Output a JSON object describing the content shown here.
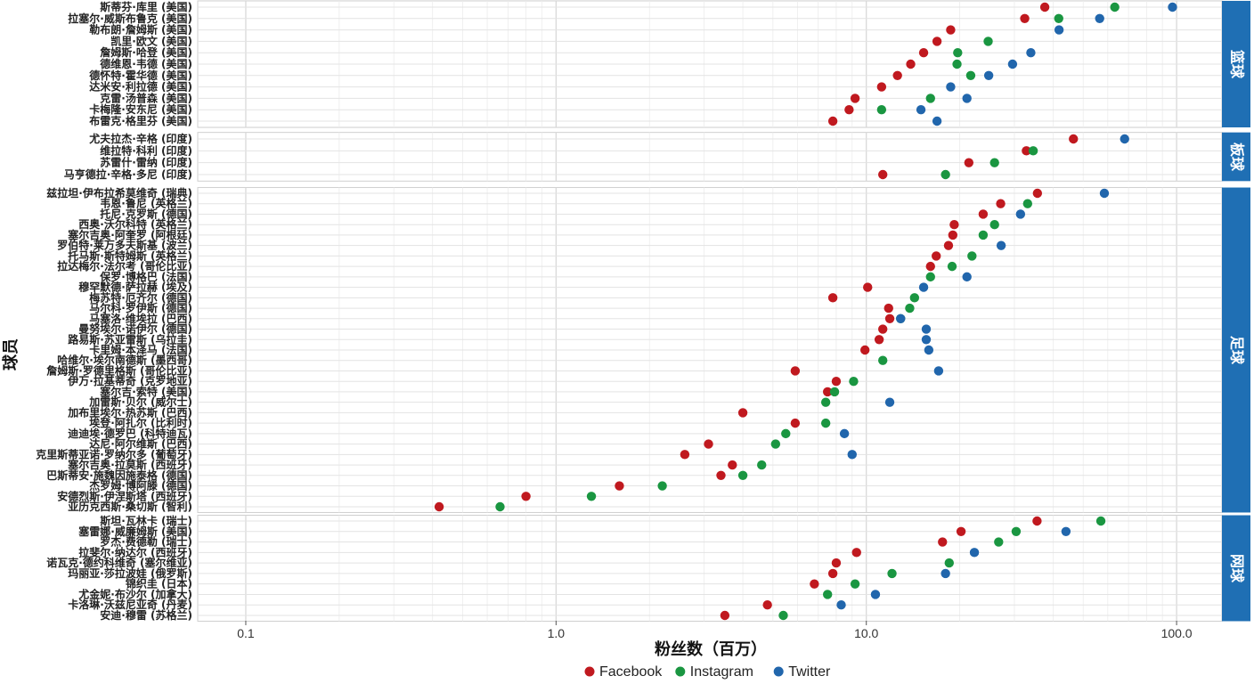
{
  "chart_data": {
    "type": "scatter",
    "xlabel": "粉丝数（百万）",
    "ylabel": "球员",
    "xscale": "log",
    "xlim": [
      0.07,
      140
    ],
    "xticks": [
      0.1,
      1.0,
      10.0,
      100.0
    ],
    "xtick_labels": [
      "0.1",
      "1.0",
      "10.0",
      "100.0"
    ],
    "grid": true,
    "legend_position": "bottom",
    "series": [
      {
        "name": "Facebook",
        "color": "#C0191F"
      },
      {
        "name": "Instagram",
        "color": "#1A9641"
      },
      {
        "name": "Twitter",
        "color": "#2166AC"
      }
    ],
    "facets": [
      {
        "label": "篮球",
        "players": [
          {
            "name": "斯蒂芬·库里 (美国)",
            "values": [
              37.6,
              63.2,
              97
            ]
          },
          {
            "name": "拉塞尔·威斯布鲁克 (美国)",
            "values": [
              32.4,
              41.7,
              56.5
            ]
          },
          {
            "name": "勒布朗·詹姆斯 (美国)",
            "values": [
              18.7,
              null,
              41.8
            ]
          },
          {
            "name": "凯里·欧文 (美国)",
            "values": [
              16.9,
              24.7,
              null
            ]
          },
          {
            "name": "詹姆斯·哈登 (美国)",
            "values": [
              15.3,
              19.7,
              33.9
            ]
          },
          {
            "name": "德维恩·韦德 (美国)",
            "values": [
              13.9,
              19.6,
              29.6
            ]
          },
          {
            "name": "德怀特·霍华德 (美国)",
            "values": [
              12.6,
              21.7,
              24.8
            ]
          },
          {
            "name": "达米安·利拉德 (美国)",
            "values": [
              11.2,
              null,
              18.7
            ]
          },
          {
            "name": "克雷·汤普森 (美国)",
            "values": [
              9.2,
              16.1,
              21.1
            ]
          },
          {
            "name": "卡梅隆·安东尼 (美国)",
            "values": [
              8.8,
              11.2,
              15.0
            ]
          },
          {
            "name": "布雷克·格里芬 (美国)",
            "values": [
              7.8,
              null,
              16.9
            ]
          }
        ]
      },
      {
        "label": "板球",
        "players": [
          {
            "name": "尤夫拉杰·辛格 (印度)",
            "values": [
              46.5,
              null,
              68
            ]
          },
          {
            "name": "维拉特·科利 (印度)",
            "values": [
              32.8,
              34.5,
              null
            ]
          },
          {
            "name": "苏雷什·雷纳 (印度)",
            "values": [
              21.4,
              25.9,
              null
            ]
          },
          {
            "name": "马亨德拉·辛格·多尼 (印度)",
            "values": [
              11.3,
              18.0,
              null
            ]
          }
        ]
      },
      {
        "label": "足球",
        "players": [
          {
            "name": "兹拉坦·伊布拉希莫维奇 (瑞典)",
            "values": [
              35.6,
              null,
              58.5
            ]
          },
          {
            "name": "韦恩·鲁尼 (英格兰)",
            "values": [
              27.1,
              33.1,
              null
            ]
          },
          {
            "name": "托尼·克罗斯 (德国)",
            "values": [
              23.8,
              null,
              31.4
            ]
          },
          {
            "name": "西奥·沃尔科特 (英格兰)",
            "values": [
              19.2,
              25.9,
              null
            ]
          },
          {
            "name": "塞尔吉奥·阿奎罗 (阿根廷)",
            "values": [
              19.0,
              23.8,
              null
            ]
          },
          {
            "name": "罗伯特·莱万多夫斯基 (波兰)",
            "values": [
              18.4,
              null,
              27.2
            ]
          },
          {
            "name": "托马斯·斯特姆斯 (英格兰)",
            "values": [
              16.8,
              21.9,
              null
            ]
          },
          {
            "name": "拉达梅尔·法尔考 (哥伦比亚)",
            "values": [
              16.1,
              18.9,
              null
            ]
          },
          {
            "name": "保罗·博格巴 (法国)",
            "values": [
              null,
              16.1,
              21.1
            ]
          },
          {
            "name": "穆罕默德·萨拉赫 (埃及)",
            "values": [
              10.1,
              null,
              15.3
            ]
          },
          {
            "name": "梅苏特·厄齐尔 (德国)",
            "values": [
              7.8,
              14.3,
              null
            ]
          },
          {
            "name": "马尔科·罗伊斯 (德国)",
            "values": [
              11.8,
              13.8,
              null
            ]
          },
          {
            "name": "马塞洛·维埃拉 (巴西)",
            "values": [
              11.9,
              12.9,
              12.9
            ]
          },
          {
            "name": "曼努埃尔·诺伊尔 (德国)",
            "values": [
              11.3,
              null,
              15.6
            ]
          },
          {
            "name": "路易斯·苏亚雷斯 (乌拉圭)",
            "values": [
              11.0,
              null,
              15.6
            ]
          },
          {
            "name": "卡里姆·本泽马 (法国)",
            "values": [
              9.9,
              null,
              15.9
            ]
          },
          {
            "name": "哈维尔·埃尔南德斯 (墨西哥)",
            "values": [
              null,
              11.3,
              null
            ]
          },
          {
            "name": "詹姆斯·罗德里格斯 (哥伦比亚)",
            "values": [
              5.9,
              null,
              17.1
            ]
          },
          {
            "name": "伊万·拉基蒂奇 (克罗地亚)",
            "values": [
              8.0,
              9.1,
              null
            ]
          },
          {
            "name": "塞尔吉·索特 (美国)",
            "values": [
              7.5,
              7.9,
              null
            ]
          },
          {
            "name": "加雷斯·贝尔 (威尔士)",
            "values": [
              null,
              7.4,
              11.9
            ]
          },
          {
            "name": "加布里埃尔·热苏斯 (巴西)",
            "values": [
              4.0,
              null,
              null
            ]
          },
          {
            "name": "埃登·阿扎尔 (比利时)",
            "values": [
              5.9,
              7.4,
              null
            ]
          },
          {
            "name": "迪迪埃·德罗巴 (科特迪瓦)",
            "values": [
              null,
              5.5,
              8.5
            ]
          },
          {
            "name": "达尼·阿尔维斯 (巴西)",
            "values": [
              3.1,
              5.1,
              null
            ]
          },
          {
            "name": "克里斯蒂亚诺·罗纳尔多 (葡萄牙)",
            "values": [
              2.6,
              null,
              9.0
            ]
          },
          {
            "name": "塞尔吉奥·拉莫斯 (西班牙)",
            "values": [
              3.7,
              4.6,
              null
            ]
          },
          {
            "name": "巴斯蒂安·施魏因施泰格 (德国)",
            "values": [
              3.4,
              4.0,
              null
            ]
          },
          {
            "name": "杰罗姆·博阿滕 (德国)",
            "values": [
              1.6,
              2.2,
              null
            ]
          },
          {
            "name": "安德烈斯·伊涅斯塔 (西班牙)",
            "values": [
              0.8,
              1.3,
              null
            ]
          },
          {
            "name": "亚历克西斯·桑切斯 (智利)",
            "values": [
              0.42,
              0.66,
              null
            ]
          }
        ]
      },
      {
        "label": "网球",
        "players": [
          {
            "name": "斯坦·瓦林卡 (瑞士)",
            "values": [
              35.5,
              57.0,
              null
            ]
          },
          {
            "name": "塞雷娜·威廉姆斯 (美国)",
            "values": [
              20.2,
              30.4,
              44.0
            ]
          },
          {
            "name": "罗杰·费德勒 (瑞士)",
            "values": [
              17.6,
              26.7,
              null
            ]
          },
          {
            "name": "拉斐尔·纳达尔 (西班牙)",
            "values": [
              9.3,
              null,
              22.3
            ]
          },
          {
            "name": "诺瓦克·德约科维奇 (塞尔维亚)",
            "values": [
              8.0,
              18.5,
              null
            ]
          },
          {
            "name": "玛丽亚·莎拉波娃 (俄罗斯)",
            "values": [
              7.8,
              12.1,
              18.0
            ]
          },
          {
            "name": "锦织圭 (日本)",
            "values": [
              6.8,
              9.2,
              null
            ]
          },
          {
            "name": "尤金妮·布沙尔 (加拿大)",
            "values": [
              null,
              7.5,
              10.7
            ]
          },
          {
            "name": "卡洛琳·沃兹尼亚奇 (丹麦)",
            "values": [
              4.8,
              null,
              8.3
            ]
          },
          {
            "name": "安迪·穆雷 (苏格兰)",
            "values": [
              3.5,
              5.4,
              null
            ]
          }
        ]
      }
    ]
  }
}
